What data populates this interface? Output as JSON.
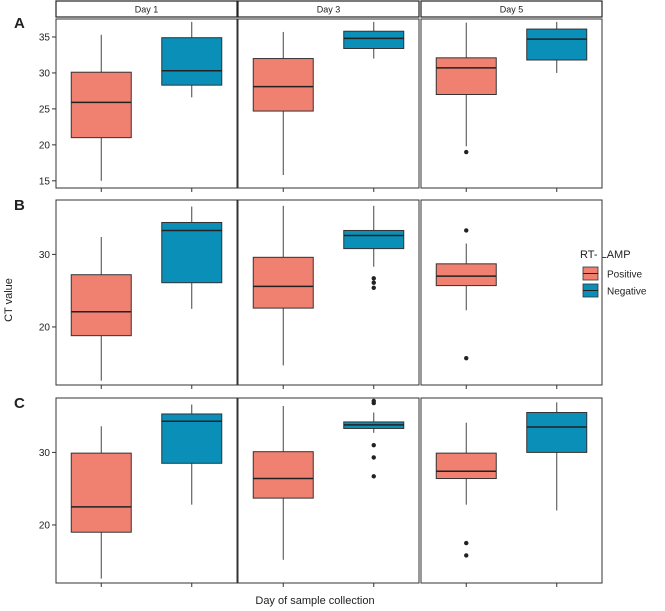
{
  "figure": {
    "ylabel": "CT value",
    "xlabel": "Day of sample collection"
  },
  "legend": {
    "title": "RT- LAMP",
    "items": [
      {
        "label": "Positive",
        "color": "#f08070"
      },
      {
        "label": "Negative",
        "color": "#0a8fb8"
      }
    ],
    "placement": "right"
  },
  "chart_data": [
    {
      "type": "box",
      "label": "A",
      "facets": [
        "Day 1",
        "Day 3",
        "Day 5"
      ],
      "ylim": [
        14,
        37.5
      ],
      "yticks": [
        15,
        20,
        25,
        30,
        35
      ],
      "grid": false,
      "series": [
        {
          "name": "Positive",
          "boxes": [
            {
              "min": 15,
              "q1": 21,
              "median": 25.9,
              "q3": 30.1,
              "max": 35.3,
              "outliers": []
            },
            {
              "min": 15.8,
              "q1": 24.7,
              "median": 28.1,
              "q3": 32,
              "max": 35.7,
              "outliers": []
            },
            {
              "min": 19.8,
              "q1": 27,
              "median": 30.7,
              "q3": 32.1,
              "max": 37,
              "outliers": [
                19
              ]
            }
          ]
        },
        {
          "name": "Negative",
          "boxes": [
            {
              "min": 26.6,
              "q1": 28.3,
              "median": 30.3,
              "q3": 34.9,
              "max": 37.1,
              "outliers": []
            },
            {
              "min": 32,
              "q1": 33.4,
              "median": 34.8,
              "q3": 35.8,
              "max": 37.1,
              "outliers": []
            },
            {
              "min": 30,
              "q1": 31.8,
              "median": 34.7,
              "q3": 36.1,
              "max": 37.1,
              "outliers": []
            }
          ]
        }
      ]
    },
    {
      "type": "box",
      "label": "B",
      "facets": [
        "Day 1",
        "Day 3",
        "Day 5"
      ],
      "ylim": [
        12,
        37.5
      ],
      "yticks": [
        20,
        30
      ],
      "grid": false,
      "series": [
        {
          "name": "Positive",
          "boxes": [
            {
              "min": 12.6,
              "q1": 18.8,
              "median": 22.1,
              "q3": 27.2,
              "max": 32.4,
              "outliers": []
            },
            {
              "min": 14.7,
              "q1": 22.6,
              "median": 25.6,
              "q3": 29.6,
              "max": 36.7,
              "outliers": []
            },
            {
              "min": 22.3,
              "q1": 25.7,
              "median": 27,
              "q3": 28.7,
              "max": 31.5,
              "outliers": [
                33.3,
                15.7
              ]
            }
          ]
        },
        {
          "name": "Negative",
          "boxes": [
            {
              "min": 22.5,
              "q1": 26.1,
              "median": 33.3,
              "q3": 34.4,
              "max": 36.6,
              "outliers": []
            },
            {
              "min": 28.3,
              "q1": 30.8,
              "median": 32.6,
              "q3": 33.3,
              "max": 36.7,
              "outliers": [
                26.7,
                26.1,
                25.4
              ]
            }
          ]
        }
      ]
    },
    {
      "type": "box",
      "label": "C",
      "facets": [
        "Day 1",
        "Day 3",
        "Day 5"
      ],
      "ylim": [
        12,
        37.5
      ],
      "yticks": [
        20,
        30
      ],
      "grid": false,
      "series": [
        {
          "name": "Positive",
          "boxes": [
            {
              "min": 12.6,
              "q1": 19,
              "median": 22.5,
              "q3": 29.9,
              "max": 33.6,
              "outliers": []
            },
            {
              "min": 15.2,
              "q1": 23.7,
              "median": 26.4,
              "q3": 30.1,
              "max": 36.4,
              "outliers": []
            },
            {
              "min": 22.8,
              "q1": 26.4,
              "median": 27.4,
              "q3": 29.9,
              "max": 34.1,
              "outliers": [
                17.5,
                15.8
              ]
            }
          ]
        },
        {
          "name": "Negative",
          "boxes": [
            {
              "min": 22.8,
              "q1": 28.5,
              "median": 34.3,
              "q3": 35.3,
              "max": 36.6,
              "outliers": []
            },
            {
              "min": 32.7,
              "q1": 33.3,
              "median": 33.8,
              "q3": 34.2,
              "max": 35.5,
              "outliers": [
                37.1,
                36.8,
                31,
                29.3,
                26.7
              ]
            },
            {
              "min": 22,
              "q1": 30,
              "median": 33.5,
              "q3": 35.5,
              "max": 36.9,
              "outliers": []
            }
          ]
        }
      ]
    }
  ]
}
